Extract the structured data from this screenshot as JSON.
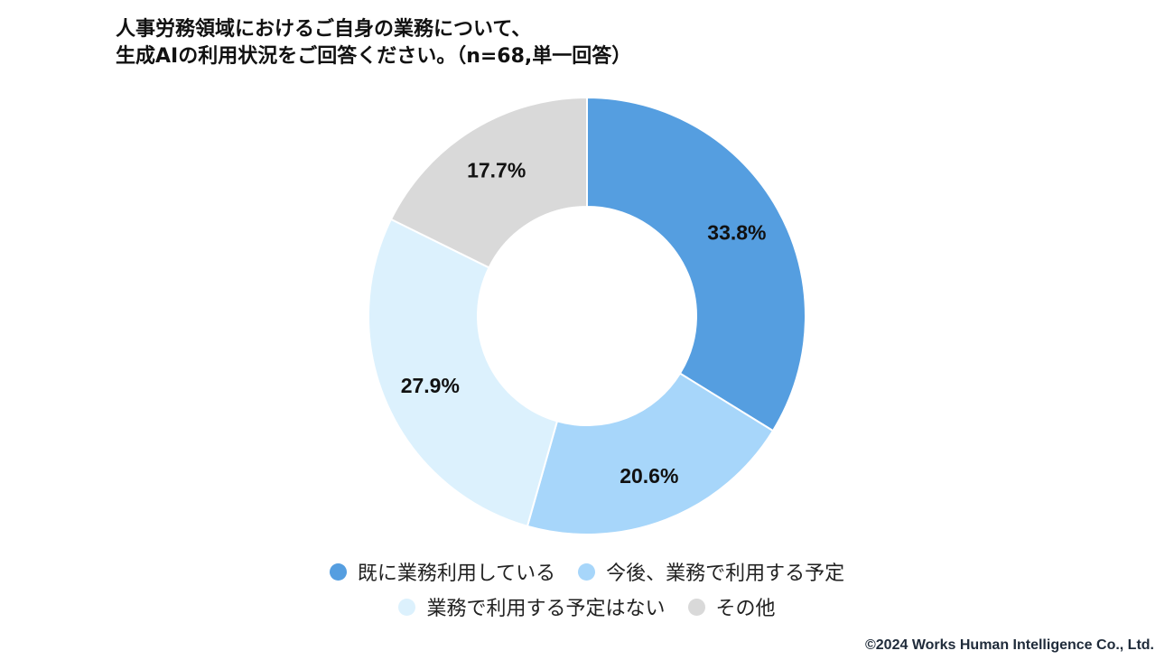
{
  "title_line1": "人事労務領域におけるご自身の業務について、",
  "title_line2": "生成AIの利用状況をご回答ください。（n=68,単一回答）",
  "chart_data": {
    "type": "pie",
    "donut": true,
    "categories": [
      "既に業務利用している",
      "今後、業務で利用する予定",
      "業務で利用する予定はない",
      "その他"
    ],
    "values": [
      33.8,
      20.6,
      27.9,
      17.7
    ],
    "labels": [
      "33.8%",
      "20.6%",
      "27.9%",
      "17.7%"
    ],
    "colors": [
      "#559ee0",
      "#a7d6fa",
      "#dcf1fd",
      "#d9d9d9"
    ],
    "title": "人事労務領域におけるご自身の業務について、生成AIの利用状況をご回答ください。（n=68,単一回答）",
    "legend_placement": "bottom"
  },
  "copyright": "©2024 Works Human Intelligence Co., Ltd."
}
